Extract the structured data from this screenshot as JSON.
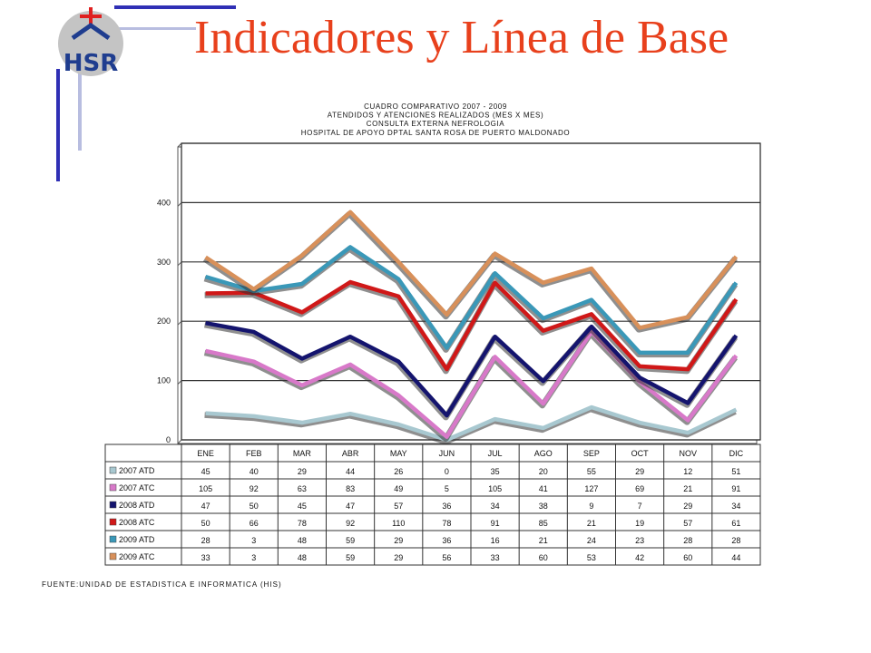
{
  "slide": {
    "title": "Indicadores y Línea de Base",
    "logo_text": "HSR",
    "source": "FUENTE:UNIDAD DE ESTADISTICA E INFORMATICA (HIS)"
  },
  "colors": {
    "title": "#e8401c",
    "accent_bar": "#2f2fb5",
    "accent_bar_light": "#b8bde0",
    "logo_red": "#e02020",
    "logo_blue": "#1f3d8f"
  },
  "chart_data": {
    "type": "line",
    "title_lines": [
      "CUADRO COMPARATIVO 2007 - 2009",
      "ATENDIDOS Y ATENCIONES  REALIZADOS (MES X MES)",
      "CONSULTA EXTERNA NEFROLOGIA",
      "HOSPITAL DE APOYO DPTAL SANTA ROSA DE PUERTO MALDONADO"
    ],
    "stacked": true,
    "categories": [
      "ENE",
      "FEB",
      "MAR",
      "ABR",
      "MAY",
      "JUN",
      "JUL",
      "AGO",
      "SEP",
      "OCT",
      "NOV",
      "DIC"
    ],
    "y_ticks": [
      0,
      100,
      200,
      300,
      400
    ],
    "ylim": [
      0,
      500
    ],
    "grid": true,
    "series": [
      {
        "name": "2007 ATD",
        "color": "#a8c8d0",
        "values": [
          45,
          40,
          29,
          44,
          26,
          0,
          35,
          20,
          55,
          29,
          12,
          51
        ]
      },
      {
        "name": "2007 ATC",
        "color": "#d879c9",
        "values": [
          105,
          92,
          63,
          83,
          49,
          5,
          105,
          41,
          127,
          69,
          21,
          91
        ]
      },
      {
        "name": "2008 ATD",
        "color": "#14146e",
        "values": [
          47,
          50,
          45,
          47,
          57,
          36,
          34,
          38,
          9,
          7,
          29,
          34
        ]
      },
      {
        "name": "2008 ATC",
        "color": "#d01818",
        "values": [
          50,
          66,
          78,
          92,
          110,
          78,
          91,
          85,
          21,
          19,
          57,
          61
        ]
      },
      {
        "name": "2009 ATD",
        "color": "#3a98b8",
        "values": [
          28,
          3,
          48,
          59,
          29,
          36,
          16,
          21,
          24,
          23,
          28,
          28
        ]
      },
      {
        "name": "2009 ATC",
        "color": "#d8905a",
        "values": [
          33,
          3,
          48,
          59,
          29,
          56,
          33,
          60,
          53,
          42,
          60,
          44
        ]
      }
    ]
  }
}
